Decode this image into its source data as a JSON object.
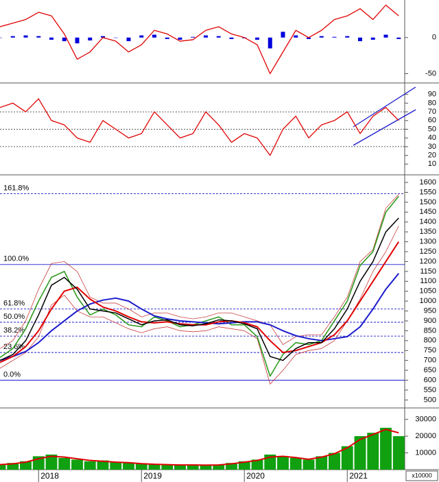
{
  "chart_data": [
    {
      "type": "combo",
      "ylim": [
        -60,
        52
      ],
      "yticks": [
        -50,
        0
      ],
      "series": [
        {
          "type": "bar",
          "color": "#0000dd",
          "values": [
            0,
            2,
            3,
            2,
            -3,
            -5,
            -8,
            -4,
            2,
            0,
            -5,
            3,
            4,
            -2,
            -3,
            1,
            3,
            2,
            -2,
            -1,
            -3,
            -15,
            8,
            3,
            -2,
            2,
            1,
            2,
            -5,
            -3,
            4,
            -2
          ]
        },
        {
          "type": "line",
          "color": "#e00000",
          "line_width": 1.3,
          "values": [
            15,
            20,
            25,
            35,
            30,
            5,
            -30,
            -20,
            0,
            -5,
            -20,
            -10,
            10,
            5,
            -5,
            -3,
            10,
            15,
            5,
            0,
            -10,
            -50,
            -20,
            10,
            0,
            10,
            25,
            30,
            40,
            25,
            45,
            30
          ]
        }
      ]
    },
    {
      "type": "combo",
      "ylim": [
        0,
        100
      ],
      "yticks": [
        10,
        20,
        30,
        40,
        50,
        60,
        70,
        80,
        90
      ],
      "hlines": [
        30,
        50,
        70
      ],
      "series": [
        {
          "type": "line",
          "color": "#e00000",
          "line_width": 1.3,
          "values": [
            75,
            80,
            70,
            85,
            60,
            55,
            40,
            35,
            60,
            50,
            40,
            45,
            70,
            55,
            40,
            45,
            70,
            55,
            35,
            45,
            40,
            20,
            50,
            65,
            40,
            55,
            60,
            70,
            45,
            65,
            75,
            60
          ]
        }
      ]
    },
    {
      "type": "combo",
      "ylim": [
        470,
        1628
      ],
      "yticks": [
        500,
        550,
        600,
        650,
        700,
        750,
        800,
        850,
        900,
        950,
        1000,
        1050,
        1100,
        1150,
        1200,
        1250,
        1300,
        1350,
        1400,
        1450,
        1500,
        1550,
        1600
      ],
      "levels": [
        {
          "label": "161.8%",
          "value": 1543,
          "dashed": true
        },
        {
          "label": "100.0%",
          "value": 1185,
          "dashed": false
        },
        {
          "label": "61.8%",
          "value": 960,
          "dashed": true
        },
        {
          "label": "50.0%",
          "value": 893,
          "dashed": true
        },
        {
          "label": "38.2%",
          "value": 823,
          "dashed": true
        },
        {
          "label": "23.6%",
          "value": 740,
          "dashed": true
        },
        {
          "label": "0.0%",
          "value": 600,
          "dashed": false
        }
      ],
      "series": [
        {
          "type": "line",
          "color": "#c02020",
          "line_width": 0.7,
          "values": [
            760,
            800,
            900,
            1060,
            1190,
            1200,
            1150,
            1020,
            990,
            990,
            960,
            920,
            940,
            940,
            920,
            910,
            920,
            940,
            940,
            920,
            900,
            880,
            780,
            820,
            830,
            830,
            920,
            1020,
            1200,
            1260,
            1470,
            1540
          ]
        },
        {
          "type": "line",
          "color": "#c02020",
          "line_width": 0.7,
          "values": [
            660,
            700,
            740,
            820,
            980,
            1030,
            950,
            920,
            920,
            890,
            860,
            840,
            860,
            870,
            850,
            845,
            850,
            870,
            860,
            850,
            810,
            580,
            650,
            730,
            750,
            760,
            800,
            900,
            1010,
            1150,
            1250,
            1380
          ]
        },
        {
          "type": "line",
          "color": "#2e9a1e",
          "line_width": 1.6,
          "values": [
            715,
            760,
            860,
            1000,
            1120,
            1150,
            1020,
            930,
            960,
            930,
            880,
            870,
            920,
            900,
            870,
            880,
            900,
            920,
            880,
            880,
            820,
            620,
            730,
            790,
            780,
            800,
            900,
            1000,
            1180,
            1250,
            1450,
            1530
          ]
        },
        {
          "type": "line",
          "color": "#1a1acc",
          "line_width": 2,
          "values": [
            700,
            720,
            745,
            790,
            850,
            900,
            950,
            985,
            1005,
            1015,
            1000,
            960,
            925,
            910,
            900,
            895,
            890,
            885,
            890,
            895,
            895,
            880,
            850,
            825,
            810,
            800,
            810,
            820,
            870,
            960,
            1060,
            1140
          ]
        },
        {
          "type": "line",
          "color": "#e00000",
          "line_width": 2,
          "values": [
            690,
            720,
            770,
            850,
            960,
            1050,
            1070,
            1010,
            970,
            950,
            920,
            895,
            890,
            895,
            885,
            880,
            880,
            895,
            900,
            890,
            870,
            800,
            740,
            750,
            770,
            790,
            830,
            900,
            1000,
            1100,
            1200,
            1300
          ]
        },
        {
          "type": "line",
          "color": "#000000",
          "line_width": 1.5,
          "values": [
            700,
            730,
            800,
            930,
            1080,
            1120,
            1060,
            960,
            950,
            940,
            910,
            880,
            900,
            905,
            880,
            875,
            885,
            905,
            900,
            885,
            860,
            720,
            700,
            760,
            790,
            790,
            860,
            960,
            1100,
            1200,
            1350,
            1420
          ]
        }
      ]
    },
    {
      "type": "combo",
      "ylim": [
        0,
        36000
      ],
      "yticks": [
        10000,
        20000,
        30000
      ],
      "unit_label": "x10000",
      "categories": [
        null,
        null,
        null,
        "2018",
        null,
        null,
        null,
        null,
        null,
        null,
        null,
        "2019",
        null,
        null,
        null,
        null,
        null,
        null,
        null,
        "2020",
        null,
        null,
        null,
        null,
        null,
        null,
        null,
        "2021",
        null,
        null,
        null,
        null
      ],
      "series": [
        {
          "type": "bar",
          "color": "#10a010",
          "values": [
            3000,
            4000,
            5000,
            8000,
            9000,
            7000,
            6000,
            5000,
            5500,
            4500,
            4000,
            3500,
            3000,
            3000,
            2500,
            3000,
            2500,
            3000,
            4000,
            5000,
            6000,
            9000,
            8000,
            7000,
            6000,
            8000,
            10000,
            14000,
            20000,
            22000,
            25000,
            20000
          ]
        },
        {
          "type": "line",
          "color": "#e00000",
          "line_width": 2,
          "values": [
            3000,
            3500,
            4500,
            6500,
            8000,
            7500,
            6500,
            5500,
            5000,
            4500,
            4200,
            3600,
            3200,
            3000,
            2800,
            2800,
            2700,
            2800,
            3500,
            4500,
            5500,
            7500,
            8000,
            7200,
            6200,
            7500,
            9500,
            13000,
            18000,
            21000,
            24000,
            22000
          ]
        }
      ]
    }
  ]
}
